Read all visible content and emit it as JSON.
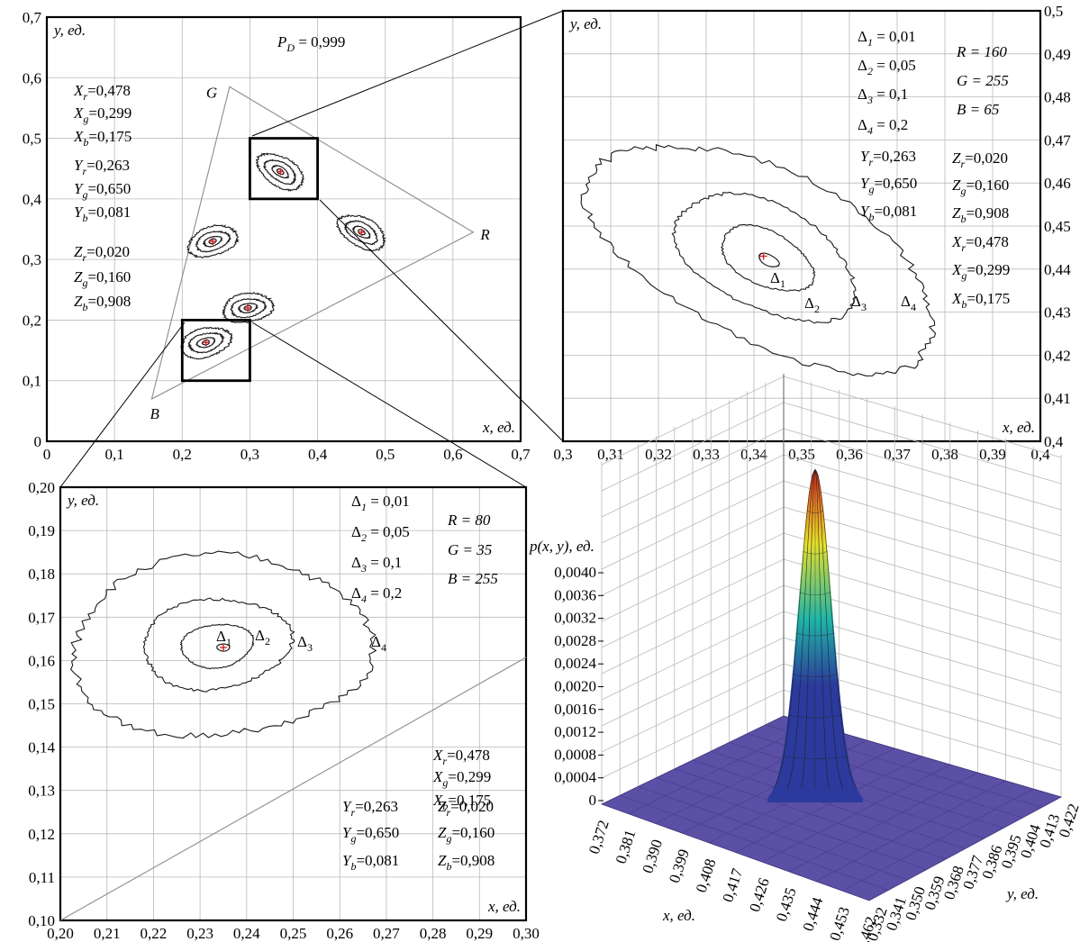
{
  "chart_data": [
    {
      "id": "overview",
      "type": "contour",
      "ylabel": "y, ед.",
      "xlabel": "x, ед.",
      "xlim": [
        0,
        0.7
      ],
      "ylim": [
        0,
        0.7
      ],
      "x_ticks": [
        "0",
        "0,1",
        "0,2",
        "0,3",
        "0,4",
        "0,5",
        "0,6",
        "0,7"
      ],
      "y_ticks": [
        "0",
        "0,1",
        "0,2",
        "0,3",
        "0,4",
        "0,5",
        "0,6",
        "0,7"
      ],
      "grid": true,
      "annotation_pd": "P_D = 0,999",
      "pd_main": "P",
      "pd_sub": "D",
      "pd_rest": " = 0,999",
      "triangle": [
        {
          "name": "R",
          "x": 0.63,
          "y": 0.345
        },
        {
          "name": "G",
          "x": 0.27,
          "y": 0.585
        },
        {
          "name": "B",
          "x": 0.155,
          "y": 0.07
        }
      ],
      "clusters": [
        {
          "x": 0.345,
          "y": 0.445
        },
        {
          "x": 0.465,
          "y": 0.345
        },
        {
          "x": 0.245,
          "y": 0.33
        },
        {
          "x": 0.297,
          "y": 0.22
        },
        {
          "x": 0.235,
          "y": 0.163
        }
      ],
      "zoom_boxes": [
        {
          "x": [
            0.3,
            0.4
          ],
          "y": [
            0.4,
            0.5
          ]
        },
        {
          "x": [
            0.2,
            0.3
          ],
          "y": [
            0.1,
            0.2
          ]
        }
      ],
      "coefficients": [
        [
          "X",
          "r",
          "=0,478"
        ],
        [
          "X",
          "g",
          "=0,299"
        ],
        [
          "X",
          "b",
          "=0,175"
        ],
        [
          "Y",
          "r",
          "=0,263"
        ],
        [
          "Y",
          "g",
          "=0,650"
        ],
        [
          "Y",
          "b",
          "=0,081"
        ],
        [
          "Z",
          "r",
          "=0,020"
        ],
        [
          "Z",
          "g",
          "=0,160"
        ],
        [
          "Z",
          "b",
          "=0,908"
        ]
      ]
    },
    {
      "id": "zoom-upper",
      "type": "contour",
      "ylabel": "y, ед.",
      "xlabel": "x, ед.",
      "xlim": [
        0.3,
        0.4
      ],
      "ylim": [
        0.4,
        0.5
      ],
      "x_ticks": [
        "0,3",
        "0,31",
        "0,32",
        "0,33",
        "0,34",
        "0,35",
        "0,36",
        "0,37",
        "0,38",
        "0,39",
        "0,4"
      ],
      "y_ticks": [
        "0,4",
        "0,41",
        "0,42",
        "0,43",
        "0,44",
        "0,45",
        "0,46",
        "0,47",
        "0,48",
        "0,49",
        "0,5"
      ],
      "grid": true,
      "center": {
        "x": 0.342,
        "y": 0.443
      },
      "contour_levels": [
        {
          "label": "Δ1",
          "value": 0.01
        },
        {
          "label": "Δ2",
          "value": 0.05
        },
        {
          "label": "Δ3",
          "value": 0.1
        },
        {
          "label": "Δ4",
          "value": 0.2
        }
      ],
      "deltas": [
        [
          "Δ",
          "1",
          " = 0,01"
        ],
        [
          "Δ",
          "2",
          " = 0,05"
        ],
        [
          "Δ",
          "3",
          " = 0,1"
        ],
        [
          "Δ",
          "4",
          " = 0,2"
        ]
      ],
      "rgb": [
        "R = 160",
        "G = 255",
        "B = 65"
      ],
      "coefficients": [
        [
          "Y",
          "r",
          "=0,263"
        ],
        [
          "Y",
          "g",
          "=0,650"
        ],
        [
          "Y",
          "b",
          "=0,081"
        ],
        [
          "Z",
          "r",
          "=0,020"
        ],
        [
          "Z",
          "g",
          "=0,160"
        ],
        [
          "Z",
          "b",
          "=0,908"
        ],
        [
          "X",
          "r",
          "=0,478"
        ],
        [
          "X",
          "g",
          "=0,299"
        ],
        [
          "X",
          "b",
          "=0,175"
        ]
      ],
      "level_labels": [
        [
          "Δ",
          "1"
        ],
        [
          "Δ",
          "2"
        ],
        [
          "Δ",
          "3"
        ],
        [
          "Δ",
          "4"
        ]
      ]
    },
    {
      "id": "zoom-lower",
      "type": "contour",
      "ylabel": "y, ед.",
      "xlabel": "x, ед.",
      "xlim": [
        0.2,
        0.3
      ],
      "ylim": [
        0.1,
        0.2
      ],
      "x_ticks": [
        "0,20",
        "0,21",
        "0,22",
        "0,23",
        "0,24",
        "0,25",
        "0,26",
        "0,27",
        "0,28",
        "0,29",
        "0,30"
      ],
      "y_ticks": [
        "0,10",
        "0,11",
        "0,12",
        "0,13",
        "0,14",
        "0,15",
        "0,16",
        "0,17",
        "0,18",
        "0,19",
        "0,20"
      ],
      "grid": true,
      "center": {
        "x": 0.235,
        "y": 0.163
      },
      "contour_levels": [
        {
          "label": "Δ1",
          "value": 0.01
        },
        {
          "label": "Δ2",
          "value": 0.05
        },
        {
          "label": "Δ3",
          "value": 0.1
        },
        {
          "label": "Δ4",
          "value": 0.2
        }
      ],
      "deltas": [
        [
          "Δ",
          "1",
          " = 0,01"
        ],
        [
          "Δ",
          "2",
          " = 0,05"
        ],
        [
          "Δ",
          "3",
          " = 0,1"
        ],
        [
          "Δ",
          "4",
          " = 0,2"
        ]
      ],
      "rgb": [
        "R = 80",
        "G = 35",
        "B = 255"
      ],
      "coefficients": [
        [
          "X",
          "r",
          "=0,478"
        ],
        [
          "X",
          "g",
          "=0,299"
        ],
        [
          "X",
          "b",
          "=0,175"
        ],
        [
          "Y",
          "r",
          "=0,263"
        ],
        [
          "Y",
          "g",
          "=0,650"
        ],
        [
          "Y",
          "b",
          "=0,081"
        ],
        [
          "Z",
          "r",
          "=0,020"
        ],
        [
          "Z",
          "g",
          "=0,160"
        ],
        [
          "Z",
          "b",
          "=0,908"
        ]
      ],
      "level_labels": [
        [
          "Δ",
          "1"
        ],
        [
          "Δ",
          "2"
        ],
        [
          "Δ",
          "3"
        ],
        [
          "Δ",
          "4"
        ]
      ]
    },
    {
      "id": "surface",
      "type": "surface3d",
      "zlabel": "p(x, y), ед.",
      "xlabel": "x, ед.",
      "ylabel": "y, ед.",
      "z_ticks": [
        "0",
        "0,0004",
        "0,0008",
        "0,0012",
        "0,0016",
        "0,0020",
        "0,0024",
        "0,0028",
        "0,0032",
        "0,0036",
        "0,0040"
      ],
      "x_ticks": [
        "0,372",
        "0,381",
        "0,390",
        "0,399",
        "0,408",
        "0,417",
        "0,426",
        "0,435",
        "0,444",
        "0,453",
        "0,462"
      ],
      "y_ticks": [
        "0,332",
        "0,341",
        "0,350",
        "0,359",
        "0,368",
        "0,377",
        "0,386",
        "0,395",
        "0,404",
        "0,413",
        "0,422"
      ],
      "peak": {
        "x": 0.417,
        "y": 0.377,
        "z": 0.0041
      },
      "colors": {
        "floor": "#5b4fa6",
        "low": "#2b3a9c",
        "mid": "#1fb5a8",
        "high": "#e8e02a",
        "top": "#e0261a"
      }
    }
  ]
}
